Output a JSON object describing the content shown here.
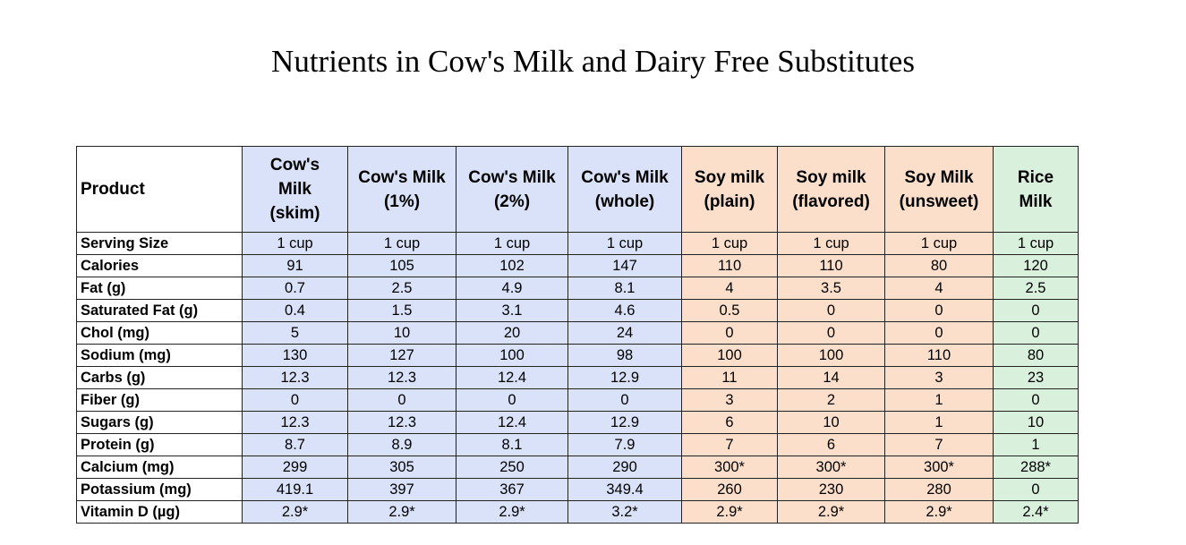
{
  "title": "Nutrients in Cow's Milk and Dairy Free Substitutes",
  "colors": {
    "cow": "#d9e2f8",
    "soy": "#fbdfcb",
    "rice": "#d8f0dc",
    "border": "#222222"
  },
  "chart_data": {
    "type": "table",
    "title": "Nutrients in Cow's Milk and Dairy Free Substitutes",
    "row_header": "Product",
    "columns": [
      {
        "lines": [
          "Cow's",
          "Milk",
          "(skim)"
        ],
        "group": "cow"
      },
      {
        "lines": [
          "Cow's Milk",
          "(1%)"
        ],
        "group": "cow"
      },
      {
        "lines": [
          "Cow's Milk",
          "(2%)"
        ],
        "group": "cow"
      },
      {
        "lines": [
          "Cow's Milk",
          "(whole)"
        ],
        "group": "cow"
      },
      {
        "lines": [
          "Soy milk",
          "(plain)"
        ],
        "group": "soy"
      },
      {
        "lines": [
          "Soy milk",
          "(flavored)"
        ],
        "group": "soy"
      },
      {
        "lines": [
          "Soy Milk",
          "(unsweet)"
        ],
        "group": "soy"
      },
      {
        "lines": [
          "Rice",
          "Milk"
        ],
        "group": "rice"
      }
    ],
    "rows": [
      {
        "label": "Serving Size",
        "values": [
          "1 cup",
          "1 cup",
          "1 cup",
          "1 cup",
          "1 cup",
          "1 cup",
          "1 cup",
          "1 cup"
        ]
      },
      {
        "label": "Calories",
        "values": [
          "91",
          "105",
          "102",
          "147",
          "110",
          "110",
          "80",
          "120"
        ]
      },
      {
        "label": "Fat (g)",
        "values": [
          "0.7",
          "2.5",
          "4.9",
          "8.1",
          "4",
          "3.5",
          "4",
          "2.5"
        ]
      },
      {
        "label": "Saturated Fat (g)",
        "values": [
          "0.4",
          "1.5",
          "3.1",
          "4.6",
          "0.5",
          "0",
          "0",
          "0"
        ]
      },
      {
        "label": "Chol (mg)",
        "values": [
          "5",
          "10",
          "20",
          "24",
          "0",
          "0",
          "0",
          "0"
        ]
      },
      {
        "label": "Sodium (mg)",
        "values": [
          "130",
          "127",
          "100",
          "98",
          "100",
          "100",
          "110",
          "80"
        ]
      },
      {
        "label": "Carbs (g)",
        "values": [
          "12.3",
          "12.3",
          "12.4",
          "12.9",
          "11",
          "14",
          "3",
          "23"
        ]
      },
      {
        "label": "Fiber (g)",
        "values": [
          "0",
          "0",
          "0",
          "0",
          "3",
          "2",
          "1",
          "0"
        ]
      },
      {
        "label": "Sugars (g)",
        "values": [
          "12.3",
          "12.3",
          "12.4",
          "12.9",
          "6",
          "10",
          "1",
          "10"
        ]
      },
      {
        "label": "Protein (g)",
        "values": [
          "8.7",
          "8.9",
          "8.1",
          "7.9",
          "7",
          "6",
          "7",
          "1"
        ]
      },
      {
        "label": "Calcium (mg)",
        "values": [
          "299",
          "305",
          "250",
          "290",
          "300*",
          "300*",
          "300*",
          "288*"
        ]
      },
      {
        "label": "Potassium (mg)",
        "values": [
          "419.1",
          "397",
          "367",
          "349.4",
          "260",
          "230",
          "280",
          "0"
        ]
      },
      {
        "label": "Vitamin D (µg)",
        "values": [
          "2.9*",
          "2.9*",
          "2.9*",
          "3.2*",
          "2.9*",
          "2.9*",
          "2.9*",
          "2.4*"
        ]
      }
    ]
  }
}
